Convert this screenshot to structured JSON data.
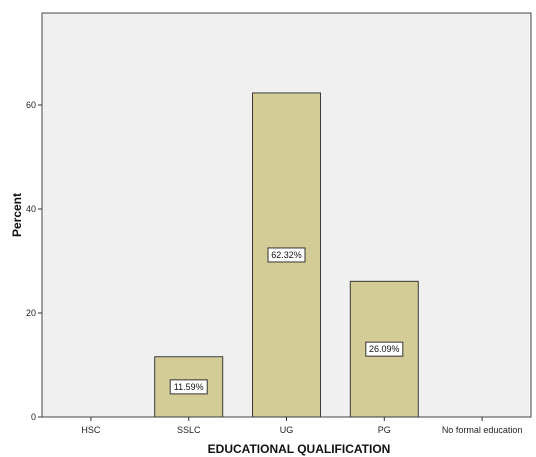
{
  "chart_data": {
    "type": "bar",
    "categories": [
      "HSC",
      "SSLC",
      "UG",
      "PG",
      "No formal education"
    ],
    "values": [
      0,
      11.59,
      62.32,
      26.09,
      0
    ],
    "data_labels": [
      "",
      "11.59%",
      "62.32%",
      "26.09%",
      ""
    ],
    "xlabel": "EDUCATIONAL  QUALIFICATION",
    "ylabel": "Percent",
    "ylim": [
      0,
      77.6
    ],
    "yticks": [
      0,
      20,
      40,
      60
    ],
    "ytick_labels": [
      "0",
      "20",
      "40",
      "60"
    ],
    "grid": false,
    "colors": {
      "bar_fill": "#d4cc96",
      "bar_stroke": "#3a3a3a",
      "plot_background": "#f0f0f0",
      "plot_border": "#444444",
      "label_box_fill": "#ffffff"
    }
  }
}
